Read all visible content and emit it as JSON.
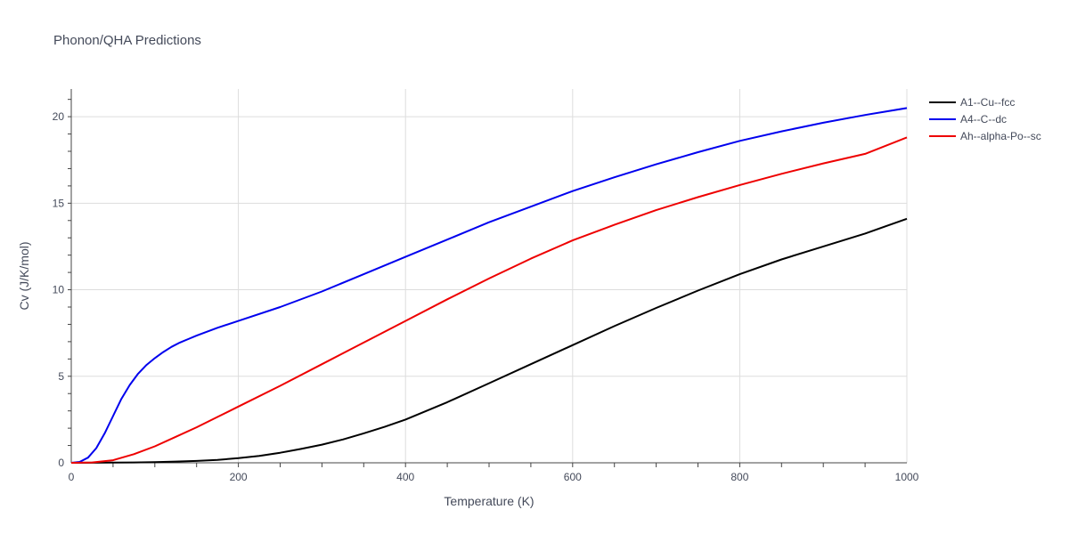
{
  "chart_data": {
    "type": "line",
    "title": "Phonon/QHA Predictions",
    "xlabel": "Temperature (K)",
    "ylabel": "Cv (J/K/mol)",
    "xlim": [
      0,
      1000
    ],
    "ylim": [
      0,
      21.6
    ],
    "x_ticks": [
      0,
      200,
      400,
      600,
      800,
      1000
    ],
    "y_ticks": [
      0,
      5,
      10,
      15,
      20
    ],
    "grid": true,
    "legend_position": "top-right",
    "series": [
      {
        "name": "A1--Cu--fcc",
        "color": "#000000",
        "x": [
          0,
          25,
          50,
          75,
          100,
          125,
          150,
          175,
          200,
          225,
          250,
          275,
          300,
          325,
          350,
          375,
          400,
          450,
          500,
          550,
          600,
          650,
          700,
          750,
          800,
          850,
          900,
          950,
          1000
        ],
        "y": [
          0,
          0.005,
          0.01,
          0.02,
          0.04,
          0.07,
          0.11,
          0.17,
          0.27,
          0.4,
          0.58,
          0.8,
          1.05,
          1.35,
          1.7,
          2.08,
          2.5,
          3.5,
          4.6,
          5.7,
          6.8,
          7.9,
          8.95,
          9.95,
          10.9,
          11.75,
          12.5,
          13.25,
          14.1
        ]
      },
      {
        "name": "A4--C--dc",
        "color": "#0000ee",
        "x": [
          0,
          10,
          20,
          30,
          40,
          50,
          60,
          70,
          80,
          90,
          100,
          110,
          120,
          130,
          140,
          150,
          175,
          200,
          250,
          300,
          350,
          400,
          450,
          500,
          550,
          600,
          650,
          700,
          750,
          800,
          850,
          900,
          950,
          1000
        ],
        "y": [
          0,
          0.05,
          0.3,
          0.85,
          1.7,
          2.7,
          3.7,
          4.5,
          5.15,
          5.65,
          6.05,
          6.4,
          6.7,
          6.95,
          7.15,
          7.35,
          7.8,
          8.2,
          9.0,
          9.9,
          10.9,
          11.9,
          12.9,
          13.9,
          14.8,
          15.7,
          16.5,
          17.25,
          17.95,
          18.6,
          19.15,
          19.65,
          20.1,
          20.5
        ]
      },
      {
        "name": "Ah--alpha-Po--sc",
        "color": "#ee0000",
        "x": [
          0,
          25,
          50,
          75,
          100,
          125,
          150,
          175,
          200,
          250,
          300,
          350,
          400,
          450,
          500,
          550,
          600,
          650,
          700,
          750,
          800,
          850,
          900,
          950,
          1000
        ],
        "y": [
          0,
          0.02,
          0.15,
          0.5,
          0.95,
          1.5,
          2.05,
          2.65,
          3.25,
          4.45,
          5.7,
          6.95,
          8.2,
          9.45,
          10.65,
          11.8,
          12.85,
          13.75,
          14.6,
          15.35,
          16.05,
          16.7,
          17.3,
          17.85,
          18.8
        ]
      }
    ]
  }
}
